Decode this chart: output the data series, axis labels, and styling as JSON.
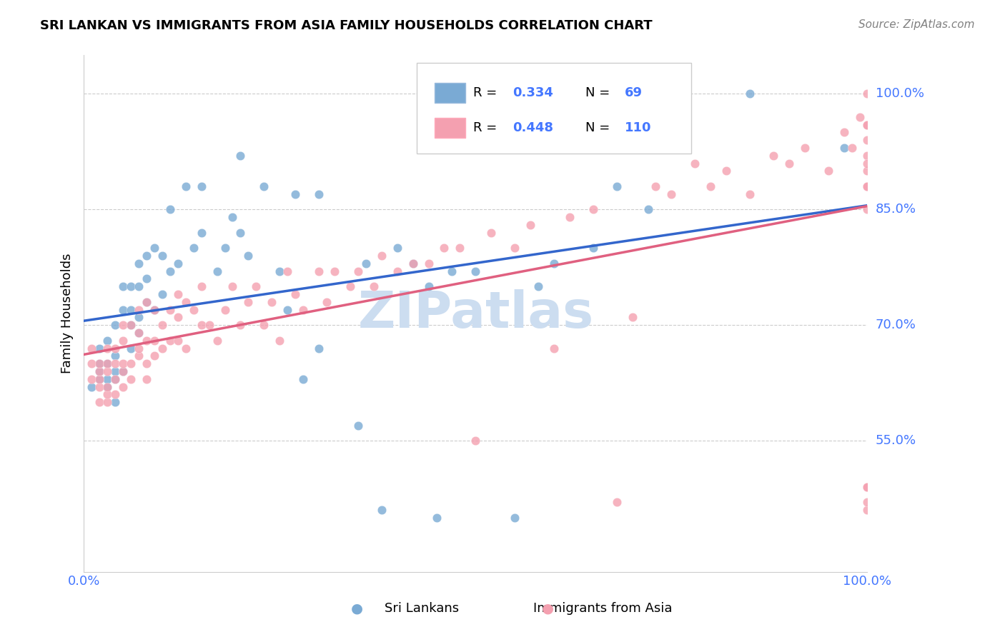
{
  "title": "SRI LANKAN VS IMMIGRANTS FROM ASIA FAMILY HOUSEHOLDS CORRELATION CHART",
  "source": "Source: ZipAtlas.com",
  "ylabel": "Family Households",
  "ytick_labels": [
    "55.0%",
    "70.0%",
    "85.0%",
    "100.0%"
  ],
  "ytick_values": [
    0.55,
    0.7,
    0.85,
    1.0
  ],
  "legend_label1": "Sri Lankans",
  "legend_label2": "Immigrants from Asia",
  "legend_R1": "0.334",
  "legend_N1": "69",
  "legend_R2": "0.448",
  "legend_N2": "110",
  "color_blue": "#7aaad4",
  "color_pink": "#f4a0b0",
  "color_blue_line": "#3366cc",
  "color_pink_line": "#e06080",
  "color_axis_labels": "#4477ff",
  "watermark_color": "#ccddf0",
  "blue_x": [
    0.01,
    0.02,
    0.02,
    0.02,
    0.02,
    0.03,
    0.03,
    0.03,
    0.03,
    0.04,
    0.04,
    0.04,
    0.04,
    0.04,
    0.05,
    0.05,
    0.05,
    0.06,
    0.06,
    0.06,
    0.06,
    0.07,
    0.07,
    0.07,
    0.07,
    0.08,
    0.08,
    0.08,
    0.09,
    0.09,
    0.1,
    0.1,
    0.11,
    0.11,
    0.12,
    0.13,
    0.14,
    0.15,
    0.15,
    0.17,
    0.18,
    0.19,
    0.2,
    0.2,
    0.21,
    0.23,
    0.25,
    0.26,
    0.27,
    0.28,
    0.3,
    0.3,
    0.35,
    0.36,
    0.38,
    0.4,
    0.42,
    0.44,
    0.45,
    0.47,
    0.5,
    0.55,
    0.58,
    0.6,
    0.65,
    0.68,
    0.72,
    0.85,
    0.97
  ],
  "blue_y": [
    0.62,
    0.63,
    0.64,
    0.65,
    0.67,
    0.62,
    0.63,
    0.65,
    0.68,
    0.6,
    0.63,
    0.64,
    0.66,
    0.7,
    0.64,
    0.72,
    0.75,
    0.67,
    0.7,
    0.72,
    0.75,
    0.69,
    0.71,
    0.75,
    0.78,
    0.73,
    0.76,
    0.79,
    0.72,
    0.8,
    0.74,
    0.79,
    0.77,
    0.85,
    0.78,
    0.88,
    0.8,
    0.82,
    0.88,
    0.77,
    0.8,
    0.84,
    0.82,
    0.92,
    0.79,
    0.88,
    0.77,
    0.72,
    0.87,
    0.63,
    0.87,
    0.67,
    0.57,
    0.78,
    0.46,
    0.8,
    0.78,
    0.75,
    0.45,
    0.77,
    0.77,
    0.45,
    0.75,
    0.78,
    0.8,
    0.88,
    0.85,
    1.0,
    0.93
  ],
  "pink_x": [
    0.01,
    0.01,
    0.01,
    0.02,
    0.02,
    0.02,
    0.02,
    0.02,
    0.03,
    0.03,
    0.03,
    0.03,
    0.03,
    0.03,
    0.04,
    0.04,
    0.04,
    0.04,
    0.05,
    0.05,
    0.05,
    0.05,
    0.05,
    0.06,
    0.06,
    0.06,
    0.07,
    0.07,
    0.07,
    0.07,
    0.08,
    0.08,
    0.08,
    0.08,
    0.09,
    0.09,
    0.09,
    0.1,
    0.1,
    0.11,
    0.11,
    0.12,
    0.12,
    0.12,
    0.13,
    0.13,
    0.14,
    0.15,
    0.15,
    0.16,
    0.17,
    0.18,
    0.19,
    0.2,
    0.21,
    0.22,
    0.23,
    0.24,
    0.25,
    0.26,
    0.27,
    0.28,
    0.3,
    0.31,
    0.32,
    0.34,
    0.35,
    0.37,
    0.38,
    0.4,
    0.42,
    0.44,
    0.46,
    0.48,
    0.5,
    0.52,
    0.55,
    0.57,
    0.6,
    0.62,
    0.65,
    0.68,
    0.7,
    0.73,
    0.75,
    0.78,
    0.8,
    0.82,
    0.85,
    0.88,
    0.9,
    0.92,
    0.95,
    0.97,
    0.98,
    0.99,
    1.0,
    1.0,
    1.0,
    1.0,
    1.0,
    1.0,
    1.0,
    1.0,
    1.0,
    1.0,
    1.0,
    1.0,
    1.0,
    1.0
  ],
  "pink_y": [
    0.63,
    0.65,
    0.67,
    0.6,
    0.62,
    0.63,
    0.64,
    0.65,
    0.6,
    0.61,
    0.62,
    0.64,
    0.65,
    0.67,
    0.61,
    0.63,
    0.65,
    0.67,
    0.62,
    0.64,
    0.65,
    0.68,
    0.7,
    0.63,
    0.65,
    0.7,
    0.66,
    0.67,
    0.69,
    0.72,
    0.63,
    0.65,
    0.68,
    0.73,
    0.66,
    0.68,
    0.72,
    0.67,
    0.7,
    0.68,
    0.72,
    0.68,
    0.71,
    0.74,
    0.67,
    0.73,
    0.72,
    0.7,
    0.75,
    0.7,
    0.68,
    0.72,
    0.75,
    0.7,
    0.73,
    0.75,
    0.7,
    0.73,
    0.68,
    0.77,
    0.74,
    0.72,
    0.77,
    0.73,
    0.77,
    0.75,
    0.77,
    0.75,
    0.79,
    0.77,
    0.78,
    0.78,
    0.8,
    0.8,
    0.55,
    0.82,
    0.8,
    0.83,
    0.67,
    0.84,
    0.85,
    0.47,
    0.71,
    0.88,
    0.87,
    0.91,
    0.88,
    0.9,
    0.87,
    0.92,
    0.91,
    0.93,
    0.9,
    0.95,
    0.93,
    0.97,
    0.96,
    0.46,
    0.47,
    0.49,
    0.85,
    0.88,
    0.92,
    0.96,
    0.49,
    0.88,
    0.9,
    1.0,
    0.94,
    0.91
  ]
}
